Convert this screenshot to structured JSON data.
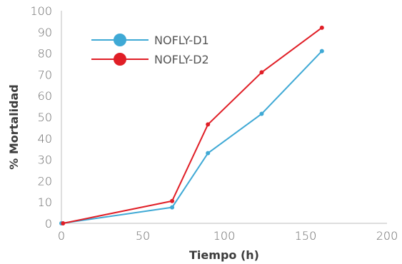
{
  "chart_data": {
    "type": "line",
    "xlabel": "Tiempo (h)",
    "ylabel": "% Mortalidad",
    "xlim": [
      0,
      200
    ],
    "ylim": [
      0,
      100
    ],
    "xticks": [
      0,
      50,
      100,
      150,
      200
    ],
    "yticks": [
      0,
      10,
      20,
      30,
      40,
      50,
      60,
      70,
      80,
      90,
      100
    ],
    "grid": false,
    "legend_position": "top-left",
    "series": [
      {
        "name": "NOFLY-D1",
        "color": "#3fa9d5",
        "points": [
          [
            0,
            0
          ],
          [
            68,
            7.5
          ],
          [
            90,
            33
          ],
          [
            123,
            51.5
          ],
          [
            160,
            81
          ]
        ]
      },
      {
        "name": "NOFLY-D2",
        "color": "#e01e26",
        "points": [
          [
            1,
            0
          ],
          [
            68,
            10.5
          ],
          [
            90,
            46.5
          ],
          [
            123,
            71
          ],
          [
            160,
            92
          ]
        ]
      }
    ]
  }
}
